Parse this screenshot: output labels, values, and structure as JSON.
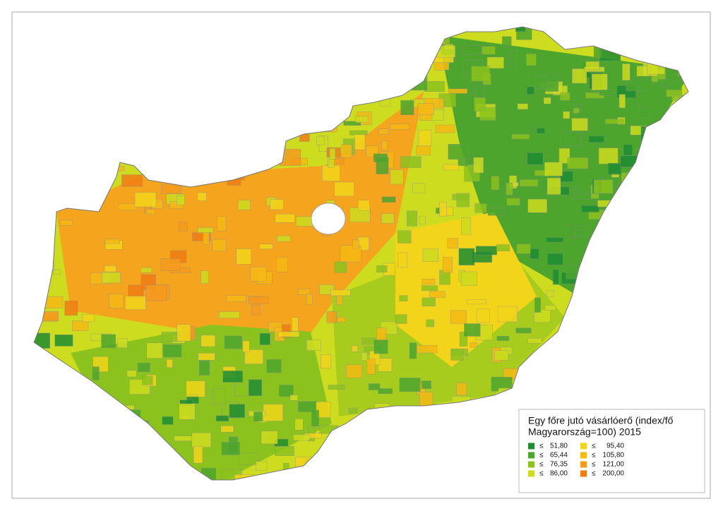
{
  "legend": {
    "title_lines": [
      "Egy főre jutó vásárlóerő (index/fő",
      "Magyarország=100) 2015"
    ],
    "items": [
      {
        "symbol": "≤",
        "label": "51,80",
        "color": "#1e8c32"
      },
      {
        "symbol": "≤",
        "label": "65,44",
        "color": "#4da52e"
      },
      {
        "symbol": "≤",
        "label": "76,35",
        "color": "#8cc21e"
      },
      {
        "symbol": "≤",
        "label": "86,00",
        "color": "#cddc1e"
      },
      {
        "symbol": "≤",
        "label": "95,40",
        "color": "#f2d51a"
      },
      {
        "symbol": "≤",
        "label": "105,80",
        "color": "#f5b914"
      },
      {
        "symbol": "≤",
        "label": "121,00",
        "color": "#f59a1e"
      },
      {
        "symbol": "≤",
        "label": "200,00",
        "color": "#f07d14"
      }
    ]
  }
}
